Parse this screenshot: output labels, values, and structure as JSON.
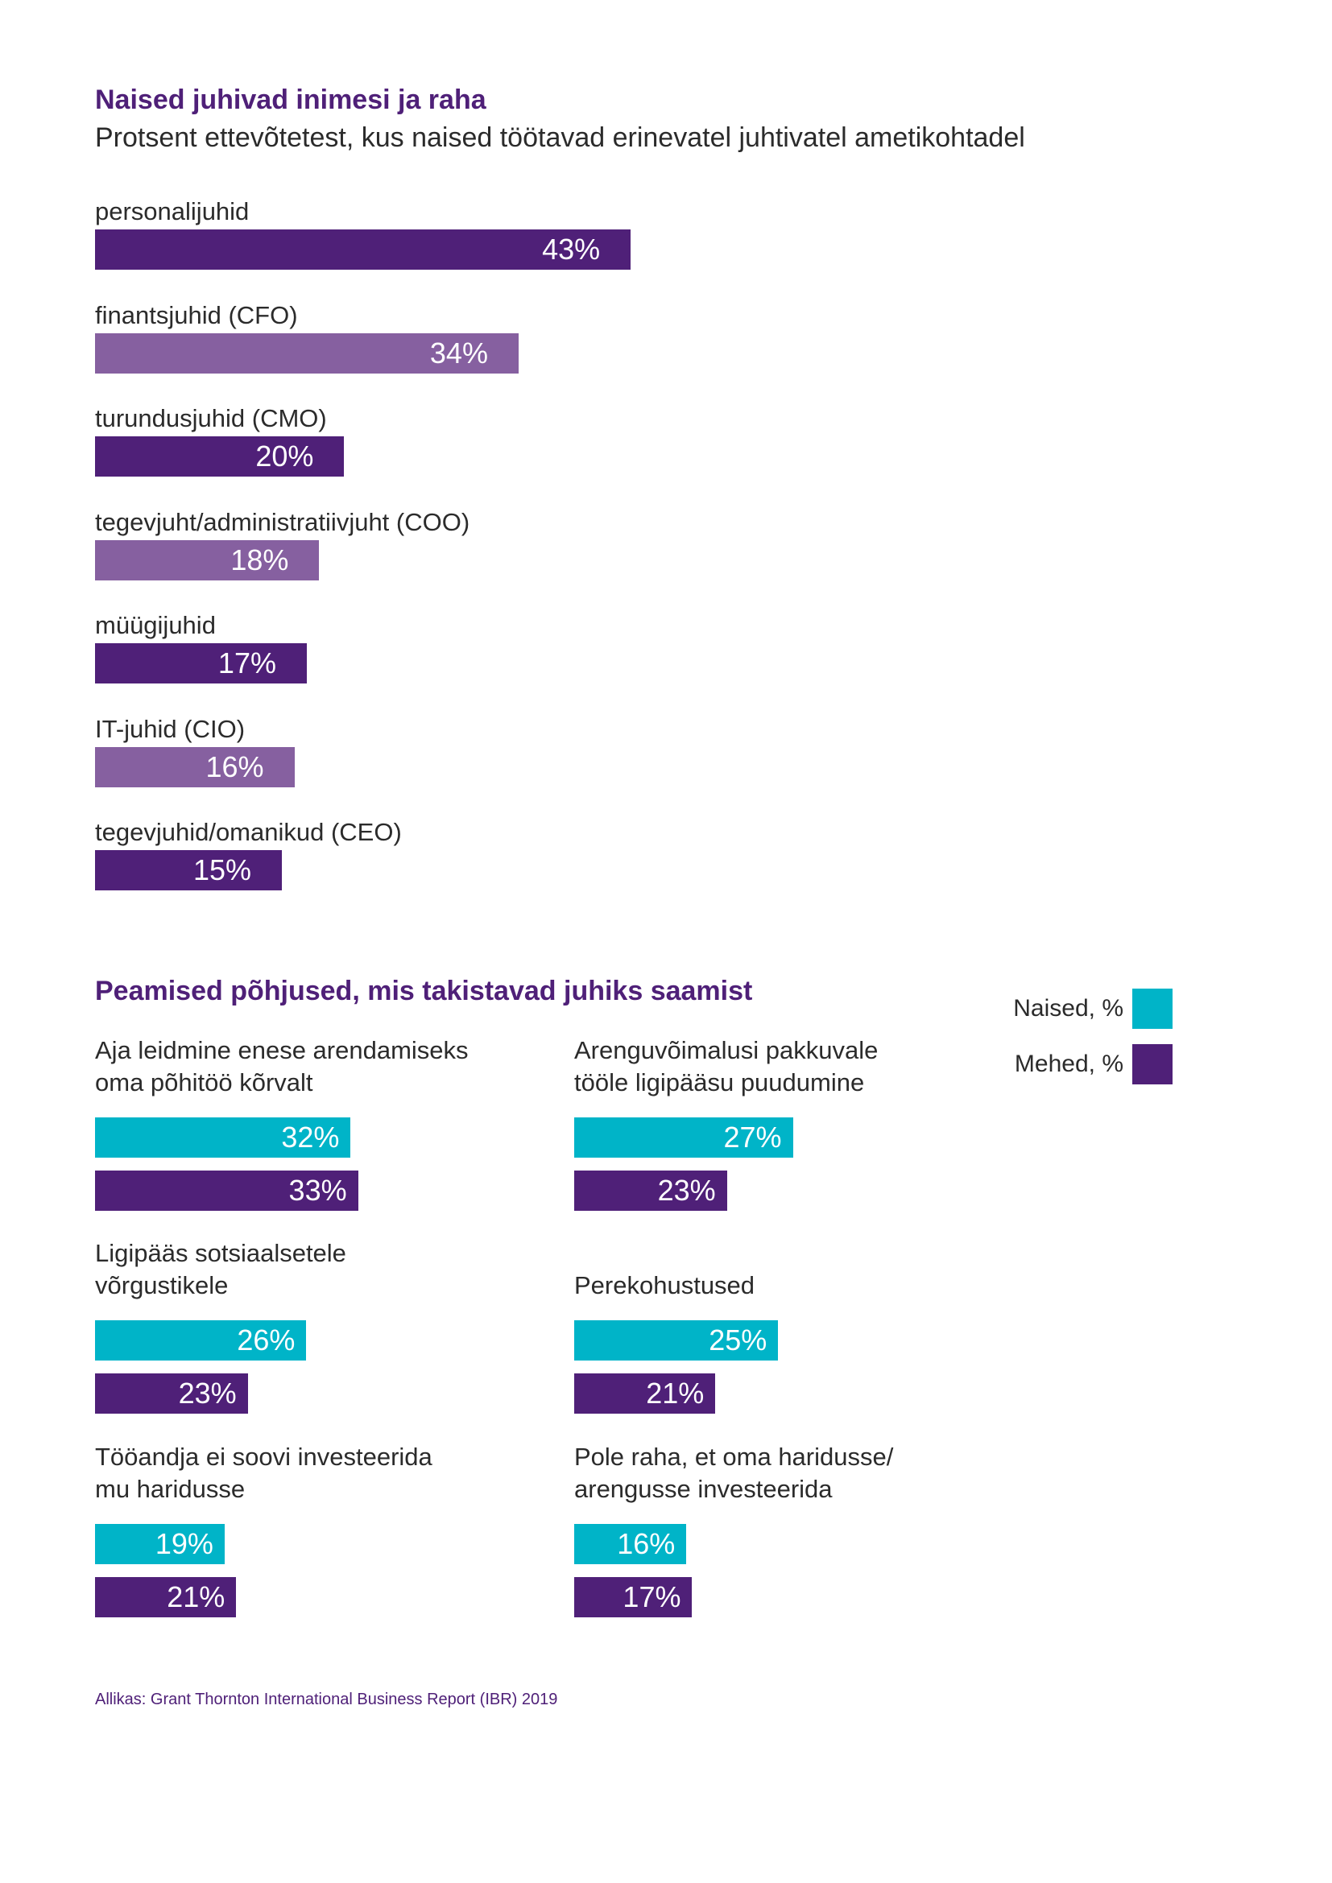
{
  "colors": {
    "dark_purple": "#4f2078",
    "light_purple": "#8660a0",
    "teal": "#00b4c8"
  },
  "chart_data": [
    {
      "type": "bar",
      "orientation": "horizontal",
      "title": "Naised juhivad inimesi ja raha",
      "subtitle": "Protsent ettevõtetest, kus naised töötavad erinevatel juhtivatel ametikohtadel",
      "categories": [
        "personalijuhid",
        "finantsjuhid (CFO)",
        "turundusjuhid (CMO)",
        "tegevjuht/administratiivjuht (COO)",
        "müügijuhid",
        "IT-juhid (CIO)",
        "tegevjuhid/omanikud (CEO)"
      ],
      "values": [
        43,
        34,
        20,
        18,
        17,
        16,
        15
      ],
      "value_labels": [
        "43%",
        "34%",
        "20%",
        "18%",
        "17%",
        "16%",
        "15%"
      ],
      "xlim": [
        0,
        100
      ]
    },
    {
      "type": "bar",
      "orientation": "horizontal",
      "title": "Peamised põhjused, mis takistavad juhiks saamist",
      "legend": [
        "Naised, %",
        "Mehed, %"
      ],
      "groups": [
        {
          "label_lines": [
            "Aja leidmine enese arendamiseks",
            "oma põhitöö kõrvalt"
          ],
          "naised": 32,
          "naised_label": "32%",
          "mehed": 33,
          "mehed_label": "33%"
        },
        {
          "label_lines": [
            "Arenguvõimalusi pakkuvale",
            "tööle ligipääsu puudumine"
          ],
          "naised": 27,
          "naised_label": "27%",
          "mehed": 23,
          "mehed_label": "23%"
        },
        {
          "label_lines": [
            "Ligipääs sotsiaalsetele",
            "võrgustikele"
          ],
          "naised": 26,
          "naised_label": "26%",
          "mehed": 23,
          "mehed_label": "23%"
        },
        {
          "label_lines": [
            "Perekohustused"
          ],
          "naised": 25,
          "naised_label": "25%",
          "mehed": 21,
          "mehed_label": "21%"
        },
        {
          "label_lines": [
            "Tööandja ei soovi investeerida",
            "mu haridusse"
          ],
          "naised": 19,
          "naised_label": "19%",
          "mehed": 21,
          "mehed_label": "21%"
        },
        {
          "label_lines": [
            "Pole raha, et oma haridusse/",
            "arengusse investeerida"
          ],
          "naised": 16,
          "naised_label": "16%",
          "mehed": 17,
          "mehed_label": "17%"
        }
      ]
    }
  ],
  "source": "Allikas: Grant Thornton International Business Report (IBR) 2019"
}
